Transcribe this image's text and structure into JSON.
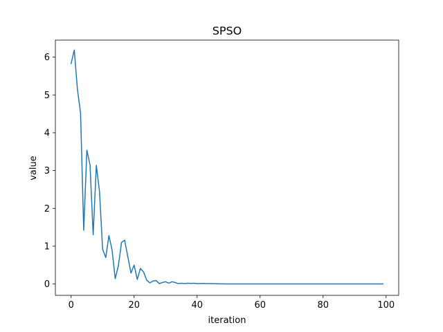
{
  "chart_data": {
    "type": "line",
    "title": "SPSO",
    "xlabel": "iteration",
    "ylabel": "value",
    "xlim": [
      -5,
      104
    ],
    "ylim": [
      -0.3,
      6.45
    ],
    "x_ticks": [
      0,
      20,
      40,
      60,
      80,
      100
    ],
    "y_ticks": [
      0,
      1,
      2,
      3,
      4,
      5,
      6
    ],
    "grid": false,
    "line_color": "#1f77b4",
    "series": [
      {
        "x": [
          0,
          1,
          2,
          3,
          4,
          5,
          6,
          7,
          8,
          9,
          10,
          11,
          12,
          13,
          14,
          15,
          16,
          17,
          18,
          19,
          20,
          21,
          22,
          23,
          24,
          25,
          26,
          27,
          28,
          29,
          30,
          31,
          32,
          33,
          34,
          35,
          36,
          37,
          38,
          39,
          40,
          41,
          42,
          43,
          44,
          45,
          46,
          47,
          48,
          49,
          50,
          51,
          52,
          53,
          54,
          55,
          56,
          57,
          58,
          59,
          60,
          61,
          62,
          63,
          64,
          65,
          66,
          67,
          68,
          69,
          70,
          71,
          72,
          73,
          74,
          75,
          76,
          77,
          78,
          79,
          80,
          81,
          82,
          83,
          84,
          85,
          86,
          87,
          88,
          89,
          90,
          91,
          92,
          93,
          94,
          95,
          96,
          97,
          98,
          99
        ],
        "values": [
          5.83,
          6.19,
          5.15,
          4.52,
          1.42,
          3.54,
          3.15,
          1.3,
          3.14,
          2.45,
          0.92,
          0.7,
          1.28,
          0.9,
          0.14,
          0.48,
          1.1,
          1.16,
          0.72,
          0.29,
          0.5,
          0.12,
          0.41,
          0.32,
          0.1,
          0.03,
          0.08,
          0.09,
          0.01,
          0.04,
          0.06,
          0.02,
          0.06,
          0.04,
          0.01,
          0.02,
          0.01,
          0.02,
          0.015,
          0.02,
          0.01,
          0.01,
          0.015,
          0.01,
          0.01,
          0.008,
          0.006,
          0.005,
          0.004,
          0.003,
          0.003,
          0.002,
          0.002,
          0.002,
          0.002,
          0.001,
          0.001,
          0.001,
          0.001,
          0.001,
          0.001,
          0.001,
          0.001,
          0.001,
          0.001,
          0.001,
          0.001,
          0.001,
          0.001,
          0.001,
          0.001,
          0.001,
          0.001,
          0.001,
          0.001,
          0.001,
          0.001,
          0.001,
          0.001,
          0.001,
          0.001,
          0.001,
          0.001,
          0.001,
          0.001,
          0.001,
          0.001,
          0.001,
          0.001,
          0.001,
          0.001,
          0.001,
          0.001,
          0.001,
          0.001,
          0.001,
          0.001,
          0.001,
          0.001,
          0.001
        ]
      }
    ]
  }
}
